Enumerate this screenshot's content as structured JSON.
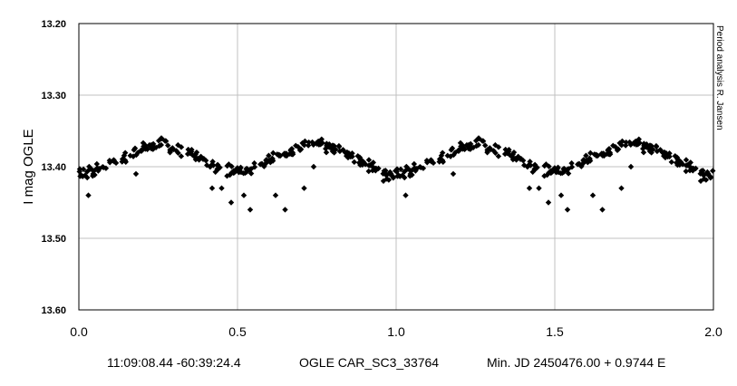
{
  "chart_data": {
    "type": "scatter",
    "title": "",
    "xlabel": "",
    "ylabel": "I mag OGLE",
    "xlim": [
      0.0,
      2.0
    ],
    "ylim": [
      13.2,
      13.6
    ],
    "y_inverted": true,
    "grid": true,
    "x_ticks": [
      "0.0",
      "0.5",
      "1.0",
      "1.5",
      "2.0"
    ],
    "y_ticks": [
      "13.20",
      "13.30",
      "13.40",
      "13.50",
      "13.60"
    ],
    "marker": "diamond",
    "marker_color": "#000000",
    "light_curve": {
      "mean_mag": 13.395,
      "primary_min_mag": 13.41,
      "secondary_min_mag": 13.405,
      "max_mag": 13.37,
      "max_phases": [
        0.25,
        0.75
      ],
      "min_phases": [
        0.0,
        0.5
      ],
      "scatter_mag": 0.008,
      "points_per_cycle": 260
    },
    "outliers": [
      {
        "x": 0.03,
        "y": 13.44
      },
      {
        "x": 0.18,
        "y": 13.41
      },
      {
        "x": 0.42,
        "y": 13.43
      },
      {
        "x": 0.45,
        "y": 13.43
      },
      {
        "x": 0.48,
        "y": 13.45
      },
      {
        "x": 0.52,
        "y": 13.44
      },
      {
        "x": 0.54,
        "y": 13.46
      },
      {
        "x": 0.62,
        "y": 13.44
      },
      {
        "x": 0.65,
        "y": 13.46
      },
      {
        "x": 0.71,
        "y": 13.43
      },
      {
        "x": 0.74,
        "y": 13.4
      },
      {
        "x": 0.26,
        "y": 13.36
      },
      {
        "x": 0.78,
        "y": 13.38
      },
      {
        "x": 0.96,
        "y": 13.42
      },
      {
        "x": 1.03,
        "y": 13.44
      },
      {
        "x": 1.18,
        "y": 13.41
      },
      {
        "x": 1.42,
        "y": 13.43
      },
      {
        "x": 1.45,
        "y": 13.43
      },
      {
        "x": 1.48,
        "y": 13.45
      },
      {
        "x": 1.52,
        "y": 13.44
      },
      {
        "x": 1.54,
        "y": 13.46
      },
      {
        "x": 1.62,
        "y": 13.44
      },
      {
        "x": 1.65,
        "y": 13.46
      },
      {
        "x": 1.71,
        "y": 13.43
      },
      {
        "x": 1.74,
        "y": 13.4
      },
      {
        "x": 1.26,
        "y": 13.36
      },
      {
        "x": 1.78,
        "y": 13.38
      },
      {
        "x": 1.96,
        "y": 13.42
      }
    ],
    "side_note": "Period analysis R. Jansen"
  },
  "caption": {
    "coordinates": "11:09:08.44 -60:39:24.4",
    "star_id": "OGLE CAR_SC3_33764",
    "ephemeris": "Min. JD 2450476.00 + 0.9744 E"
  }
}
